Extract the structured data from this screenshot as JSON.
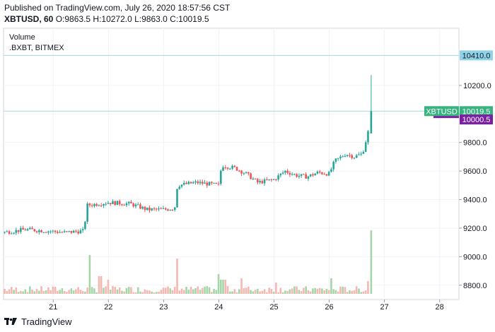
{
  "header": {
    "published": "Published on TradingView.com, July 26, 2020 18:57:56 CST",
    "symbol": "XBTUSD, 60",
    "ohlc": "O:9863.5 H:10272.0 L:9863.0 C:10019.5"
  },
  "legend": {
    "volume": "Volume",
    "index": ".BXBT, BITMEX"
  },
  "footer": {
    "brand": "TradingView"
  },
  "colors": {
    "up": "#26a69a",
    "down": "#ef5350",
    "vol_up": "#a5d6a7",
    "vol_down": "#f5b7b1",
    "hline": "#a8d8e0",
    "price_tag": "#36b37e",
    "index_tag": "#7b1fa2",
    "level_tag": "#8fd3e8"
  },
  "chart_data": {
    "type": "candlestick",
    "x_ticks": [
      "21",
      "22",
      "23",
      "24",
      "25",
      "26",
      "27",
      "28"
    ],
    "y_ticks": [
      8800,
      9000,
      9200,
      9400,
      9600,
      9800,
      10000,
      10200
    ],
    "y_ticks_labels": [
      "8800.0",
      "9000.0",
      "9200.0",
      "9400.0",
      "9600.0",
      "9800.0",
      "10000.0",
      "10200.0"
    ],
    "ylim": [
      8700,
      10600
    ],
    "xlim": [
      20.1,
      28.35
    ],
    "price_lines": [
      {
        "label": "10410.0",
        "value": 10410
      },
      {
        "label": "10019.5",
        "value": 10019.5,
        "name": "XBTUSD"
      }
    ],
    "index_tag": {
      "label": "10000.5",
      "value": 10000.5
    },
    "trend": [
      [
        20.1,
        9170
      ],
      [
        20.5,
        9190
      ],
      [
        20.9,
        9180
      ],
      [
        21.2,
        9170
      ],
      [
        21.55,
        9180
      ],
      [
        21.62,
        9360
      ],
      [
        22.0,
        9380
      ],
      [
        22.4,
        9370
      ],
      [
        22.7,
        9330
      ],
      [
        23.0,
        9330
      ],
      [
        23.2,
        9340
      ],
      [
        23.25,
        9500
      ],
      [
        23.6,
        9520
      ],
      [
        24.0,
        9500
      ],
      [
        24.05,
        9640
      ],
      [
        24.3,
        9620
      ],
      [
        24.5,
        9580
      ],
      [
        24.7,
        9520
      ],
      [
        25.0,
        9540
      ],
      [
        25.2,
        9600
      ],
      [
        25.4,
        9570
      ],
      [
        25.6,
        9560
      ],
      [
        25.8,
        9590
      ],
      [
        26.0,
        9580
      ],
      [
        26.1,
        9670
      ],
      [
        26.3,
        9720
      ],
      [
        26.45,
        9700
      ],
      [
        26.6,
        9720
      ],
      [
        26.7,
        9863.5
      ],
      [
        26.76,
        10019.5
      ]
    ],
    "volume_spikes": [
      [
        21.65,
        0.55
      ],
      [
        21.85,
        0.25
      ],
      [
        22.0,
        0.2
      ],
      [
        23.25,
        0.5
      ],
      [
        24.0,
        0.28
      ],
      [
        24.05,
        0.2
      ],
      [
        24.1,
        0.2
      ],
      [
        24.4,
        0.22
      ],
      [
        25.05,
        0.16
      ],
      [
        26.05,
        0.22
      ],
      [
        26.7,
        0.18
      ],
      [
        26.76,
        0.9
      ]
    ]
  }
}
